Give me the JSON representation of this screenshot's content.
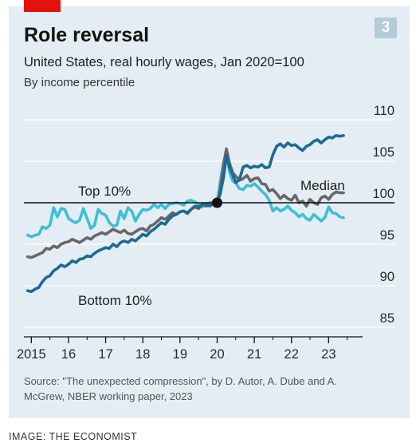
{
  "figure": {
    "badge": "3",
    "source": "Source: \"The unexpected compression\", by D. Autor, A. Dube and A. McGrew, NBER working paper, 2023",
    "credit": "IMAGE: THE ECONOMIST",
    "colors": {
      "background": "#e3edf3",
      "accent": "#e3120b",
      "top10": "#3ebfd6",
      "median": "#676767",
      "bottom10": "#1d6a96",
      "grid": "#ffffff",
      "baseline": "#121212"
    }
  },
  "chart_data": {
    "type": "line",
    "title": "Role reversal",
    "subtitle": "United States, real hourly wages, Jan 2020=100",
    "ylabel": "By income percentile",
    "xlabel": "",
    "ylim": [
      85,
      110
    ],
    "xlim": [
      2014.8,
      2023.7
    ],
    "yticks": [
      85,
      90,
      95,
      100,
      105,
      110
    ],
    "xticks": [
      {
        "value": 2015,
        "label": "2015"
      },
      {
        "value": 2016,
        "label": "16"
      },
      {
        "value": 2017,
        "label": "17"
      },
      {
        "value": 2018,
        "label": "18"
      },
      {
        "value": 2019,
        "label": "19"
      },
      {
        "value": 2020,
        "label": "20"
      },
      {
        "value": 2021,
        "label": "21"
      },
      {
        "value": 2022,
        "label": "22"
      },
      {
        "value": 2023,
        "label": "23"
      }
    ],
    "grid": true,
    "baseline": 100,
    "marker": {
      "x": 2020.0,
      "y": 100
    },
    "series": [
      {
        "name": "Top 10%",
        "key": "top10",
        "x": [
          2014.9,
          2015.0,
          2015.1,
          2015.2,
          2015.3,
          2015.4,
          2015.5,
          2015.6,
          2015.7,
          2015.8,
          2015.9,
          2016.0,
          2016.1,
          2016.2,
          2016.3,
          2016.4,
          2016.5,
          2016.6,
          2016.7,
          2016.8,
          2016.9,
          2017.0,
          2017.1,
          2017.2,
          2017.3,
          2017.4,
          2017.5,
          2017.6,
          2017.7,
          2017.8,
          2017.9,
          2018.0,
          2018.1,
          2018.2,
          2018.3,
          2018.4,
          2018.5,
          2018.6,
          2018.7,
          2018.8,
          2018.9,
          2019.0,
          2019.1,
          2019.2,
          2019.3,
          2019.4,
          2019.5,
          2019.6,
          2019.7,
          2019.8,
          2019.9,
          2020.0,
          2020.08,
          2020.17,
          2020.25,
          2020.33,
          2020.42,
          2020.5,
          2020.6,
          2020.7,
          2020.8,
          2020.9,
          2021.0,
          2021.1,
          2021.2,
          2021.3,
          2021.4,
          2021.5,
          2021.6,
          2021.7,
          2021.8,
          2021.9,
          2022.0,
          2022.1,
          2022.2,
          2022.3,
          2022.4,
          2022.5,
          2022.6,
          2022.7,
          2022.8,
          2022.9,
          2023.0,
          2023.1,
          2023.2,
          2023.3,
          2023.4
        ],
        "values": [
          96.1,
          95.9,
          96.1,
          96.2,
          97.1,
          96.9,
          97.3,
          99.4,
          98.3,
          99.3,
          99.2,
          98.1,
          97.8,
          97.6,
          97.9,
          99.3,
          98.1,
          96.9,
          97.3,
          99.2,
          98.7,
          98.5,
          97.6,
          97.2,
          97.3,
          99.0,
          98.1,
          99.4,
          99.0,
          97.8,
          98.6,
          99.2,
          99.1,
          99.3,
          99.8,
          99.4,
          99.8,
          99.3,
          99.8,
          99.9,
          100.0,
          99.9,
          99.7,
          100.2,
          100.3,
          100.1,
          99.8,
          99.5,
          99.8,
          100.0,
          100.1,
          100.0,
          102.5,
          104.8,
          106.0,
          103.8,
          102.6,
          102.4,
          101.7,
          101.6,
          102.1,
          102.0,
          102.3,
          101.9,
          101.4,
          101.0,
          100.3,
          99.0,
          99.4,
          99.0,
          99.2,
          99.6,
          99.1,
          98.8,
          98.3,
          98.6,
          98.1,
          97.9,
          98.6,
          98.2,
          97.8,
          98.2,
          99.5,
          98.8,
          98.7,
          98.3,
          98.2
        ]
      },
      {
        "name": "Median",
        "key": "median",
        "x": [
          2014.9,
          2015.0,
          2015.1,
          2015.2,
          2015.3,
          2015.4,
          2015.5,
          2015.6,
          2015.7,
          2015.8,
          2015.9,
          2016.0,
          2016.1,
          2016.2,
          2016.3,
          2016.4,
          2016.5,
          2016.6,
          2016.7,
          2016.8,
          2016.9,
          2017.0,
          2017.1,
          2017.2,
          2017.3,
          2017.4,
          2017.5,
          2017.6,
          2017.7,
          2017.8,
          2017.9,
          2018.0,
          2018.1,
          2018.2,
          2018.3,
          2018.4,
          2018.5,
          2018.6,
          2018.7,
          2018.8,
          2018.9,
          2019.0,
          2019.1,
          2019.2,
          2019.3,
          2019.4,
          2019.5,
          2019.6,
          2019.7,
          2019.8,
          2019.9,
          2020.0,
          2020.08,
          2020.17,
          2020.25,
          2020.33,
          2020.42,
          2020.5,
          2020.6,
          2020.7,
          2020.8,
          2020.9,
          2021.0,
          2021.1,
          2021.2,
          2021.3,
          2021.4,
          2021.5,
          2021.6,
          2021.7,
          2021.8,
          2021.9,
          2022.0,
          2022.1,
          2022.2,
          2022.3,
          2022.4,
          2022.5,
          2022.6,
          2022.7,
          2022.8,
          2022.9,
          2023.0,
          2023.1,
          2023.2,
          2023.3,
          2023.4
        ],
        "values": [
          93.5,
          93.4,
          93.6,
          93.8,
          94.0,
          94.5,
          94.4,
          94.8,
          94.6,
          95.0,
          95.2,
          95.3,
          95.6,
          95.4,
          95.2,
          95.5,
          95.8,
          95.6,
          96.0,
          96.2,
          96.4,
          96.2,
          96.5,
          96.8,
          96.6,
          96.4,
          96.7,
          96.3,
          96.2,
          96.5,
          96.8,
          96.9,
          96.6,
          97.2,
          97.4,
          97.8,
          98.2,
          98.0,
          98.4,
          98.8,
          98.6,
          98.9,
          99.0,
          98.7,
          99.2,
          99.5,
          99.3,
          99.8,
          99.6,
          99.7,
          99.9,
          100.0,
          101.5,
          104.5,
          106.5,
          104.8,
          103.6,
          103.2,
          102.7,
          102.9,
          103.3,
          102.6,
          102.9,
          103.0,
          102.3,
          102.2,
          101.4,
          101.6,
          101.1,
          100.5,
          100.9,
          100.5,
          100.3,
          100.9,
          100.0,
          100.2,
          99.6,
          100.4,
          100.0,
          99.8,
          100.6,
          100.8,
          100.4,
          101.0,
          101.3,
          101.2,
          101.2
        ]
      },
      {
        "name": "Bottom 10%",
        "key": "bottom10",
        "x": [
          2014.9,
          2015.0,
          2015.1,
          2015.2,
          2015.3,
          2015.4,
          2015.5,
          2015.6,
          2015.7,
          2015.8,
          2015.9,
          2016.0,
          2016.1,
          2016.2,
          2016.3,
          2016.4,
          2016.5,
          2016.6,
          2016.7,
          2016.8,
          2016.9,
          2017.0,
          2017.1,
          2017.2,
          2017.3,
          2017.4,
          2017.5,
          2017.6,
          2017.7,
          2017.8,
          2017.9,
          2018.0,
          2018.1,
          2018.2,
          2018.3,
          2018.4,
          2018.5,
          2018.6,
          2018.7,
          2018.8,
          2018.9,
          2019.0,
          2019.1,
          2019.2,
          2019.3,
          2019.4,
          2019.5,
          2019.6,
          2019.7,
          2019.8,
          2019.9,
          2020.0,
          2020.08,
          2020.17,
          2020.25,
          2020.33,
          2020.42,
          2020.5,
          2020.6,
          2020.7,
          2020.8,
          2020.9,
          2021.0,
          2021.1,
          2021.2,
          2021.3,
          2021.4,
          2021.5,
          2021.6,
          2021.7,
          2021.8,
          2021.9,
          2022.0,
          2022.1,
          2022.2,
          2022.3,
          2022.4,
          2022.5,
          2022.6,
          2022.7,
          2022.8,
          2022.9,
          2023.0,
          2023.1,
          2023.2,
          2023.3,
          2023.4
        ],
        "values": [
          89.4,
          89.3,
          89.6,
          89.8,
          90.5,
          91.0,
          91.2,
          91.8,
          92.1,
          92.5,
          92.3,
          92.6,
          93.0,
          92.8,
          93.2,
          93.3,
          93.6,
          93.5,
          93.9,
          94.2,
          94.4,
          94.6,
          94.5,
          95.0,
          94.7,
          95.2,
          95.4,
          95.2,
          95.6,
          95.4,
          95.8,
          96.2,
          96.0,
          96.5,
          96.8,
          97.2,
          97.6,
          97.4,
          98.0,
          98.4,
          98.6,
          98.9,
          99.0,
          98.8,
          99.2,
          99.6,
          99.5,
          99.8,
          99.9,
          99.6,
          99.9,
          100.0,
          101.0,
          103.0,
          105.7,
          104.3,
          103.3,
          102.4,
          102.8,
          104.3,
          104.5,
          104.2,
          104.4,
          104.3,
          104.6,
          104.2,
          104.3,
          105.8,
          106.8,
          107.1,
          106.7,
          107.2,
          106.9,
          107.0,
          106.6,
          106.3,
          106.8,
          107.0,
          107.4,
          107.6,
          107.2,
          107.6,
          107.9,
          107.8,
          108.1,
          108.0,
          108.1
        ]
      }
    ],
    "annotations": [
      {
        "text": "Top 10%",
        "series": "top10"
      },
      {
        "text": "Median",
        "series": "median"
      },
      {
        "text": "Bottom 10%",
        "series": "bottom10"
      }
    ]
  }
}
